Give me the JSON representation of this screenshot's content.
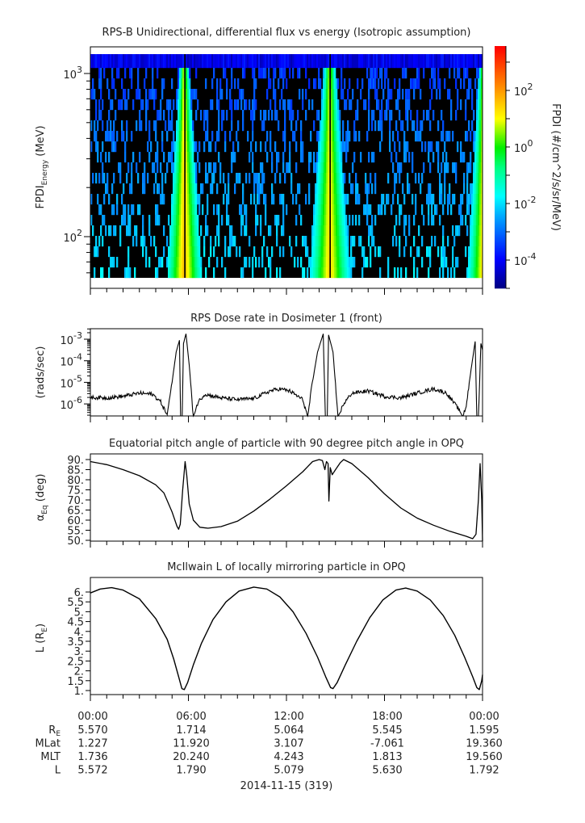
{
  "chart_data": [
    {
      "type": "heatmap",
      "title": "RPS-B  Unidirectional, differential flux vs energy (Isotropic assumption)",
      "ylabel": {
        "main": "FPDI",
        "sub": "Energy",
        "unit": " (MeV)"
      },
      "yscale": "log",
      "ylim": [
        56,
        1315
      ],
      "yticks": [
        {
          "value": 100,
          "base": "10",
          "exp": "2"
        },
        {
          "value": 1000,
          "base": "10",
          "exp": "3"
        }
      ],
      "x_hours_range": [
        0,
        24
      ],
      "energy_bin_count": 21,
      "background_log_flux_range": [
        -4,
        -2
      ],
      "belt_crossings": [
        {
          "center_hour": 5.75,
          "gap_hour": 5.82,
          "halfwidth_top_h": 0.25,
          "halfwidth_bottom_h": 1.05,
          "peak_log_flux": 1.8
        },
        {
          "center_hour": 14.65,
          "gap_hour": 14.62,
          "halfwidth_top_h": 0.35,
          "halfwidth_bottom_h": 1.25,
          "peak_log_flux": 1.5
        },
        {
          "center_hour": 24.05,
          "gap_hour": 30,
          "halfwidth_top_h": 0.25,
          "halfwidth_bottom_h": 1.0,
          "peak_log_flux": 1.5
        }
      ],
      "colorbar": {
        "label": "FPDI (#/cm^2/s/sr/MeV)",
        "log_range": [
          -5,
          3.57
        ],
        "ticks": [
          {
            "exp": "2",
            "value": 2
          },
          {
            "exp": "0",
            "value": 0
          },
          {
            "exp": "-2",
            "value": -2
          },
          {
            "exp": "-4",
            "value": -4
          }
        ]
      }
    },
    {
      "type": "line",
      "title": "RPS  Dose rate in Dosimeter 1 (front)",
      "ylabel": "(rads/sec)",
      "yscale": "log",
      "ylim_log10": [
        -6.55,
        -2.52
      ],
      "yticks": [
        {
          "exp": "-3",
          "value": -3
        },
        {
          "exp": "-4",
          "value": -4
        },
        {
          "exp": "-5",
          "value": -5
        },
        {
          "exp": "-6",
          "value": -6
        }
      ],
      "points_hour_log10": [
        [
          0,
          -5.7
        ],
        [
          1,
          -5.72
        ],
        [
          2,
          -5.65
        ],
        [
          3,
          -5.5
        ],
        [
          3.8,
          -5.55
        ],
        [
          4.3,
          -5.9
        ],
        [
          4.7,
          -6.5
        ],
        [
          5.0,
          -5.0
        ],
        [
          5.25,
          -3.6
        ],
        [
          5.45,
          -3.05
        ],
        [
          5.52,
          -6.6
        ],
        [
          5.62,
          -6.6
        ],
        [
          5.7,
          -3.2
        ],
        [
          5.85,
          -2.75
        ],
        [
          6.05,
          -4.2
        ],
        [
          6.3,
          -6.6
        ],
        [
          6.6,
          -5.9
        ],
        [
          7,
          -5.55
        ],
        [
          8,
          -5.72
        ],
        [
          9,
          -5.8
        ],
        [
          10,
          -5.75
        ],
        [
          11,
          -5.4
        ],
        [
          11.6,
          -5.3
        ],
        [
          12.2,
          -5.4
        ],
        [
          13,
          -5.8
        ],
        [
          13.3,
          -6.6
        ],
        [
          13.55,
          -5.2
        ],
        [
          13.9,
          -3.6
        ],
        [
          14.25,
          -2.75
        ],
        [
          14.38,
          -6.6
        ],
        [
          14.5,
          -6.6
        ],
        [
          14.58,
          -2.8
        ],
        [
          14.85,
          -3.6
        ],
        [
          15.15,
          -6.6
        ],
        [
          15.5,
          -6.0
        ],
        [
          16,
          -5.5
        ],
        [
          17,
          -5.4
        ],
        [
          18,
          -5.65
        ],
        [
          19,
          -5.72
        ],
        [
          20,
          -5.5
        ],
        [
          21,
          -5.3
        ],
        [
          21.8,
          -5.5
        ],
        [
          22.5,
          -6.2
        ],
        [
          22.8,
          -6.6
        ],
        [
          23.0,
          -6.1
        ],
        [
          23.3,
          -4.4
        ],
        [
          23.55,
          -3.1
        ],
        [
          23.65,
          -6.6
        ],
        [
          23.75,
          -6.6
        ],
        [
          23.9,
          -3.2
        ],
        [
          24,
          -3.5
        ]
      ]
    },
    {
      "type": "line",
      "title": "Equatorial pitch angle of particle with 90 degree pitch angle in OPQ",
      "ylabel": {
        "main": "α",
        "sub": "Eq",
        "unit": " (deg)"
      },
      "ylim": [
        48.5,
        91.5
      ],
      "yticks": [
        "90.",
        "85.",
        "80.",
        "75.",
        "70.",
        "65.",
        "60.",
        "55.",
        "50."
      ],
      "points_hour_deg": [
        [
          0,
          89
        ],
        [
          1,
          87.5
        ],
        [
          2,
          85
        ],
        [
          3,
          82
        ],
        [
          4,
          77.5
        ],
        [
          4.5,
          73.5
        ],
        [
          5,
          64
        ],
        [
          5.3,
          57
        ],
        [
          5.4,
          55.5
        ],
        [
          5.5,
          58
        ],
        [
          5.65,
          75
        ],
        [
          5.8,
          89
        ],
        [
          5.9,
          82
        ],
        [
          6.05,
          68
        ],
        [
          6.3,
          60
        ],
        [
          6.7,
          56.5
        ],
        [
          7.2,
          56
        ],
        [
          8,
          56.8
        ],
        [
          9,
          59.5
        ],
        [
          10,
          64.5
        ],
        [
          11,
          70.5
        ],
        [
          12,
          77
        ],
        [
          13,
          84
        ],
        [
          13.6,
          89
        ],
        [
          14.0,
          90
        ],
        [
          14.2,
          89.5
        ],
        [
          14.35,
          85
        ],
        [
          14.45,
          89
        ],
        [
          14.55,
          88
        ],
        [
          14.6,
          69.5
        ],
        [
          14.68,
          86
        ],
        [
          14.8,
          82.5
        ],
        [
          15.0,
          85
        ],
        [
          15.3,
          88.5
        ],
        [
          15.5,
          90
        ],
        [
          16,
          88
        ],
        [
          17,
          81
        ],
        [
          18,
          73
        ],
        [
          19,
          66
        ],
        [
          20,
          61
        ],
        [
          21,
          57.5
        ],
        [
          22,
          54.5
        ],
        [
          23,
          52
        ],
        [
          23.4,
          50.8
        ],
        [
          23.6,
          53
        ],
        [
          23.75,
          70
        ],
        [
          23.85,
          88
        ],
        [
          23.95,
          70
        ],
        [
          24,
          49
        ]
      ]
    },
    {
      "type": "line",
      "title": "McIlwain L of locally mirroring particle in OPQ",
      "ylabel": {
        "main": "L (R",
        "sub": "E",
        "unit": ")"
      },
      "ylim": [
        0.8,
        6.5
      ],
      "yticks": [
        "6.",
        "5.5",
        "5.",
        "4.5",
        "4.",
        "3.5",
        "3.",
        "2.5",
        "2.",
        "1.5",
        "1."
      ],
      "points_hour_L": [
        [
          0,
          5.95
        ],
        [
          0.6,
          6.15
        ],
        [
          1.3,
          6.22
        ],
        [
          2,
          6.1
        ],
        [
          3,
          5.65
        ],
        [
          4,
          4.65
        ],
        [
          4.7,
          3.6
        ],
        [
          5.1,
          2.6
        ],
        [
          5.4,
          1.7
        ],
        [
          5.6,
          1.1
        ],
        [
          5.75,
          1.05
        ],
        [
          5.95,
          1.4
        ],
        [
          6.3,
          2.3
        ],
        [
          6.8,
          3.4
        ],
        [
          7.5,
          4.6
        ],
        [
          8.3,
          5.5
        ],
        [
          9.1,
          6.05
        ],
        [
          10,
          6.25
        ],
        [
          10.8,
          6.15
        ],
        [
          11.6,
          5.75
        ],
        [
          12.4,
          5.0
        ],
        [
          13.2,
          3.9
        ],
        [
          13.9,
          2.7
        ],
        [
          14.4,
          1.7
        ],
        [
          14.7,
          1.15
        ],
        [
          14.85,
          1.1
        ],
        [
          15.1,
          1.4
        ],
        [
          15.6,
          2.3
        ],
        [
          16.3,
          3.5
        ],
        [
          17.1,
          4.7
        ],
        [
          17.9,
          5.6
        ],
        [
          18.7,
          6.1
        ],
        [
          19.3,
          6.2
        ],
        [
          20,
          6.05
        ],
        [
          20.8,
          5.6
        ],
        [
          21.6,
          4.8
        ],
        [
          22.3,
          3.8
        ],
        [
          22.9,
          2.7
        ],
        [
          23.4,
          1.7
        ],
        [
          23.65,
          1.15
        ],
        [
          23.8,
          1.05
        ],
        [
          23.95,
          1.5
        ],
        [
          24,
          1.8
        ]
      ]
    }
  ],
  "x_axis": {
    "tick_labels": [
      "00:00",
      "06:00",
      "12:00",
      "18:00",
      "00:00"
    ],
    "date_label": "2014-11-15 (319)",
    "rows": [
      {
        "label": "R",
        "sub": "E",
        "values": [
          "5.570",
          "1.714",
          "5.064",
          "5.545",
          "1.595"
        ]
      },
      {
        "label": "MLat",
        "sub": "",
        "values": [
          "1.227",
          "11.920",
          "3.107",
          "-7.061",
          "19.360"
        ]
      },
      {
        "label": "MLT",
        "sub": "",
        "values": [
          "1.736",
          "20.240",
          "4.243",
          "1.813",
          "19.560"
        ]
      },
      {
        "label": "L",
        "sub": "",
        "values": [
          "5.572",
          "1.790",
          "5.079",
          "5.630",
          "1.792"
        ]
      }
    ]
  }
}
